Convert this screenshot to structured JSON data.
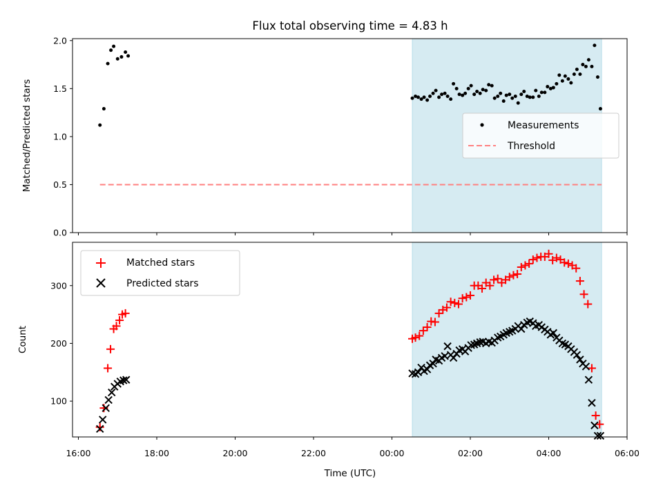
{
  "chart_data": {
    "type": "scatter",
    "title": "Flux total observing time = 4.83 h",
    "xlabel": "Time (UTC)",
    "x_unit": "hours since 16:00 UTC",
    "xlim": [
      -0.15,
      14.0
    ],
    "xticks": [
      {
        "value": 0,
        "label": "16:00"
      },
      {
        "value": 2,
        "label": "18:00"
      },
      {
        "value": 4,
        "label": "20:00"
      },
      {
        "value": 6,
        "label": "22:00"
      },
      {
        "value": 8,
        "label": "00:00"
      },
      {
        "value": 10,
        "label": "02:00"
      },
      {
        "value": 12,
        "label": "04:00"
      },
      {
        "value": 14,
        "label": "06:00"
      }
    ],
    "shaded_region": {
      "x_start": 8.52,
      "x_end": 13.35,
      "color": "#add8e6"
    },
    "panels": {
      "top": {
        "ylabel": "Matched/Predicted stars",
        "ylim": [
          0,
          2.02
        ],
        "yticks": [
          {
            "value": 0,
            "label": "0.0"
          },
          {
            "value": 0.5,
            "label": "0.5"
          },
          {
            "value": 1.0,
            "label": "1.0"
          },
          {
            "value": 1.5,
            "label": "1.5"
          },
          {
            "value": 2.0,
            "label": "2.0"
          }
        ],
        "legend": {
          "position": "center-right",
          "entries": [
            {
              "label": "Measurements",
              "color": "#000000",
              "marker": "dot"
            },
            {
              "label": "Threshold",
              "color": "#ff7f7f",
              "marker": "dashed-line"
            }
          ]
        },
        "threshold": {
          "value": 0.5,
          "x_start": 0.55,
          "x_end": 13.35
        },
        "measurements": {
          "x": [
            0.55,
            0.65,
            0.75,
            0.83,
            0.9,
            1.0,
            1.1,
            1.2,
            1.27,
            8.52,
            8.6,
            8.67,
            8.75,
            8.82,
            8.9,
            8.97,
            9.05,
            9.12,
            9.2,
            9.27,
            9.35,
            9.42,
            9.5,
            9.57,
            9.65,
            9.72,
            9.8,
            9.87,
            9.95,
            10.02,
            10.1,
            10.17,
            10.25,
            10.32,
            10.4,
            10.47,
            10.55,
            10.62,
            10.7,
            10.77,
            10.85,
            10.92,
            11.0,
            11.07,
            11.15,
            11.22,
            11.3,
            11.37,
            11.45,
            11.52,
            11.6,
            11.67,
            11.75,
            11.82,
            11.9,
            11.97,
            12.05,
            12.12,
            12.2,
            12.27,
            12.35,
            12.42,
            12.5,
            12.57,
            12.65,
            12.72,
            12.8,
            12.87,
            12.95,
            13.02,
            13.1,
            13.17,
            13.25,
            13.32
          ],
          "y": [
            1.12,
            1.29,
            1.76,
            1.9,
            1.94,
            1.81,
            1.83,
            1.88,
            1.84,
            1.4,
            1.42,
            1.41,
            1.39,
            1.41,
            1.38,
            1.42,
            1.45,
            1.48,
            1.41,
            1.44,
            1.45,
            1.42,
            1.39,
            1.55,
            1.5,
            1.44,
            1.43,
            1.45,
            1.5,
            1.53,
            1.44,
            1.47,
            1.45,
            1.49,
            1.48,
            1.54,
            1.53,
            1.4,
            1.42,
            1.45,
            1.37,
            1.43,
            1.44,
            1.4,
            1.42,
            1.35,
            1.44,
            1.47,
            1.42,
            1.41,
            1.41,
            1.48,
            1.42,
            1.46,
            1.46,
            1.52,
            1.5,
            1.51,
            1.55,
            1.64,
            1.58,
            1.63,
            1.6,
            1.56,
            1.65,
            1.7,
            1.65,
            1.75,
            1.73,
            1.8,
            1.73,
            1.95,
            1.62,
            1.29
          ]
        }
      },
      "bottom": {
        "ylabel": "Count",
        "ylim": [
          38,
          375
        ],
        "yticks": [
          {
            "value": 100,
            "label": "100"
          },
          {
            "value": 200,
            "label": "200"
          },
          {
            "value": 300,
            "label": "300"
          }
        ],
        "legend": {
          "position": "top-left",
          "entries": [
            {
              "label": "Matched stars",
              "color": "#ff0000",
              "marker": "+"
            },
            {
              "label": "Predicted stars",
              "color": "#000000",
              "marker": "x"
            }
          ]
        },
        "series": [
          {
            "name": "Matched stars",
            "color": "#ff0000",
            "marker": "+",
            "x": [
              0.55,
              0.65,
              0.75,
              0.82,
              0.9,
              0.97,
              1.05,
              1.12,
              1.2,
              8.52,
              8.6,
              8.7,
              8.8,
              8.9,
              9.0,
              9.1,
              9.2,
              9.3,
              9.4,
              9.5,
              9.6,
              9.7,
              9.8,
              9.9,
              10.0,
              10.1,
              10.2,
              10.3,
              10.4,
              10.5,
              10.6,
              10.7,
              10.8,
              10.9,
              11.0,
              11.1,
              11.2,
              11.3,
              11.4,
              11.5,
              11.6,
              11.7,
              11.8,
              11.9,
              12.0,
              12.1,
              12.2,
              12.3,
              12.4,
              12.5,
              12.6,
              12.7,
              12.8,
              12.9,
              13.0,
              13.1,
              13.2,
              13.3
            ],
            "y": [
              55,
              88,
              157,
              190,
              225,
              230,
              240,
              250,
              252,
              208,
              210,
              213,
              222,
              228,
              238,
              237,
              252,
              258,
              262,
              272,
              270,
              268,
              278,
              280,
              283,
              300,
              300,
              295,
              305,
              300,
              310,
              312,
              305,
              310,
              315,
              318,
              320,
              332,
              335,
              338,
              345,
              348,
              350,
              350,
              355,
              344,
              348,
              345,
              340,
              338,
              335,
              330,
              308,
              285,
              268,
              157,
              75,
              60
            ]
          },
          {
            "name": "Predicted stars",
            "color": "#000000",
            "marker": "x",
            "x": [
              0.55,
              0.62,
              0.7,
              0.77,
              0.85,
              0.92,
              1.0,
              1.07,
              1.15,
              1.22,
              8.52,
              8.6,
              8.67,
              8.75,
              8.82,
              8.9,
              8.97,
              9.05,
              9.12,
              9.2,
              9.27,
              9.35,
              9.42,
              9.5,
              9.57,
              9.65,
              9.72,
              9.8,
              9.87,
              9.95,
              10.02,
              10.1,
              10.17,
              10.25,
              10.32,
              10.4,
              10.47,
              10.55,
              10.62,
              10.7,
              10.77,
              10.85,
              10.92,
              11.0,
              11.07,
              11.15,
              11.22,
              11.3,
              11.37,
              11.45,
              11.52,
              11.6,
              11.67,
              11.75,
              11.82,
              11.9,
              11.97,
              12.05,
              12.12,
              12.2,
              12.27,
              12.35,
              12.42,
              12.5,
              12.57,
              12.65,
              12.72,
              12.8,
              12.87,
              12.95,
              13.02,
              13.1,
              13.17,
              13.25,
              13.32
            ],
            "y": [
              52,
              68,
              88,
              102,
              115,
              125,
              130,
              134,
              136,
              137,
              148,
              147,
              150,
              158,
              152,
              155,
              162,
              165,
              172,
              170,
              175,
              178,
              195,
              180,
              175,
              182,
              188,
              190,
              186,
              192,
              197,
              198,
              200,
              202,
              203,
              200,
              203,
              201,
              205,
              210,
              212,
              215,
              218,
              220,
              222,
              225,
              230,
              225,
              232,
              236,
              238,
              235,
              230,
              232,
              228,
              224,
              220,
              215,
              218,
              210,
              205,
              200,
              198,
              195,
              190,
              185,
              180,
              172,
              165,
              160,
              137,
              97,
              58,
              40,
              40
            ]
          }
        ]
      }
    }
  }
}
